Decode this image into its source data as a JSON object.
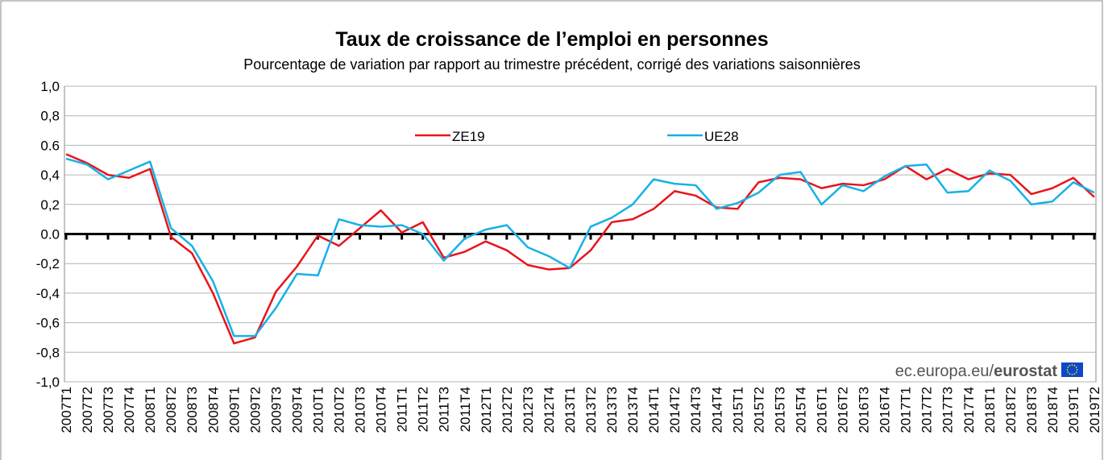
{
  "chart_data": {
    "type": "line",
    "title": "Taux de croissance de l’emploi en personnes",
    "subtitle": "Pourcentage de variation par rapport au trimestre précédent, corrigé des variations saisonnières",
    "watermark": [
      "ec.europa.eu/",
      "eurostat"
    ],
    "categories": [
      "2007T1",
      "2007T2",
      "2007T3",
      "2007T4",
      "2008T1",
      "2008T2",
      "2008T3",
      "2008T4",
      "2009T1",
      "2009T2",
      "2009T3",
      "2009T4",
      "2010T1",
      "2010T2",
      "2010T3",
      "2010T4",
      "2011T1",
      "2011T2",
      "2011T3",
      "2011T4",
      "2012T1",
      "2012T2",
      "2012T3",
      "2012T4",
      "2013T1",
      "2013T2",
      "2013T3",
      "2013T4",
      "2014T1",
      "2014T2",
      "2014T3",
      "2014T4",
      "2015T1",
      "2015T2",
      "2015T3",
      "2015T4",
      "2016T1",
      "2016T2",
      "2016T3",
      "2016T4",
      "2017T1",
      "2017T2",
      "2017T3",
      "2017T4",
      "2018T1",
      "2018T2",
      "2018T3",
      "2018T4",
      "2019T1",
      "2019T2"
    ],
    "series": [
      {
        "name": "ZE19",
        "color": "#e8141c",
        "values": [
          0.54,
          0.48,
          0.4,
          0.38,
          0.44,
          -0.02,
          -0.13,
          -0.4,
          -0.74,
          -0.7,
          -0.39,
          -0.22,
          -0.01,
          -0.08,
          0.04,
          0.16,
          0.01,
          0.08,
          -0.16,
          -0.12,
          -0.05,
          -0.11,
          -0.21,
          -0.24,
          -0.23,
          -0.11,
          0.08,
          0.1,
          0.17,
          0.29,
          0.26,
          0.18,
          0.17,
          0.35,
          0.38,
          0.37,
          0.31,
          0.34,
          0.33,
          0.37,
          0.46,
          0.37,
          0.44,
          0.37,
          0.41,
          0.4,
          0.27,
          0.31,
          0.38,
          0.25
        ]
      },
      {
        "name": "UE28",
        "color": "#17b1e6",
        "values": [
          0.51,
          0.47,
          0.37,
          0.43,
          0.49,
          0.04,
          -0.08,
          -0.32,
          -0.69,
          -0.69,
          -0.5,
          -0.27,
          -0.28,
          0.1,
          0.06,
          0.05,
          0.06,
          0.0,
          -0.18,
          -0.03,
          0.03,
          0.06,
          -0.09,
          -0.15,
          -0.23,
          0.05,
          0.11,
          0.2,
          0.37,
          0.34,
          0.33,
          0.17,
          0.21,
          0.28,
          0.4,
          0.42,
          0.2,
          0.33,
          0.29,
          0.39,
          0.46,
          0.47,
          0.28,
          0.29,
          0.43,
          0.36,
          0.2,
          0.22,
          0.35,
          0.28
        ]
      }
    ],
    "ylim": [
      -1.0,
      1.0
    ],
    "yticks": [
      {
        "value": 1.0,
        "label": "1,0"
      },
      {
        "value": 0.8,
        "label": "0,8"
      },
      {
        "value": 0.6,
        "label": "0.6"
      },
      {
        "value": 0.4,
        "label": "0,4"
      },
      {
        "value": 0.2,
        "label": "0,2"
      },
      {
        "value": 0,
        "label": "0.0"
      },
      {
        "value": -0.2,
        "label": "-0,2"
      },
      {
        "value": -0.4,
        "label": "-0,4"
      },
      {
        "value": -0.6,
        "label": "-0,6"
      },
      {
        "value": -0.8,
        "label": "-0,8"
      },
      {
        "value": -1.0,
        "label": "-1,0"
      }
    ],
    "grid": true,
    "legend": "top"
  }
}
